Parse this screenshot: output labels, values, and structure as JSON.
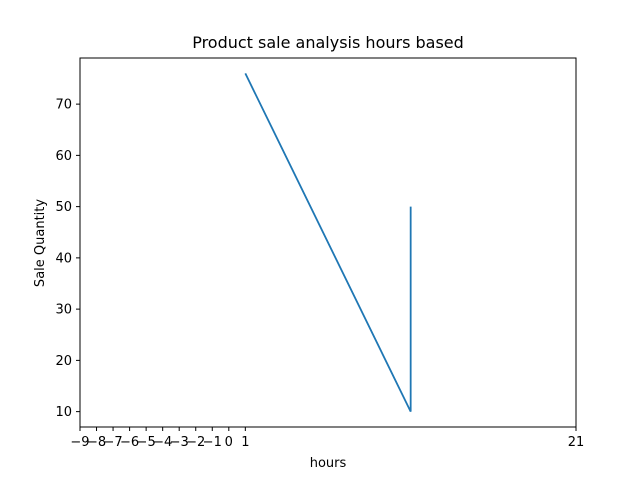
{
  "chart_data": {
    "type": "line",
    "title": "Product sale analysis hours based",
    "xlabel": "hours",
    "ylabel": "Sale Quantity",
    "xlim": [
      -9,
      21
    ],
    "ylim": [
      7,
      79
    ],
    "grid": false,
    "x_tick_labels": [
      {
        "value": -9,
        "label": "−9"
      },
      {
        "value": -8,
        "label": "−8"
      },
      {
        "value": -7,
        "label": "−7"
      },
      {
        "value": -6,
        "label": "−6"
      },
      {
        "value": -5,
        "label": "−5"
      },
      {
        "value": -4,
        "label": "−4"
      },
      {
        "value": -3,
        "label": "−3"
      },
      {
        "value": -2,
        "label": "−2"
      },
      {
        "value": -1,
        "label": "−1"
      },
      {
        "value": 0,
        "label": "0"
      },
      {
        "value": 1,
        "label": "1"
      },
      {
        "value": 21,
        "label": "21"
      }
    ],
    "y_ticks": [
      10,
      20,
      30,
      40,
      50,
      60,
      70
    ],
    "series": [
      {
        "x": [
          1,
          11,
          11
        ],
        "y": [
          76,
          10,
          50
        ],
        "color": "#1f77b4"
      }
    ]
  }
}
